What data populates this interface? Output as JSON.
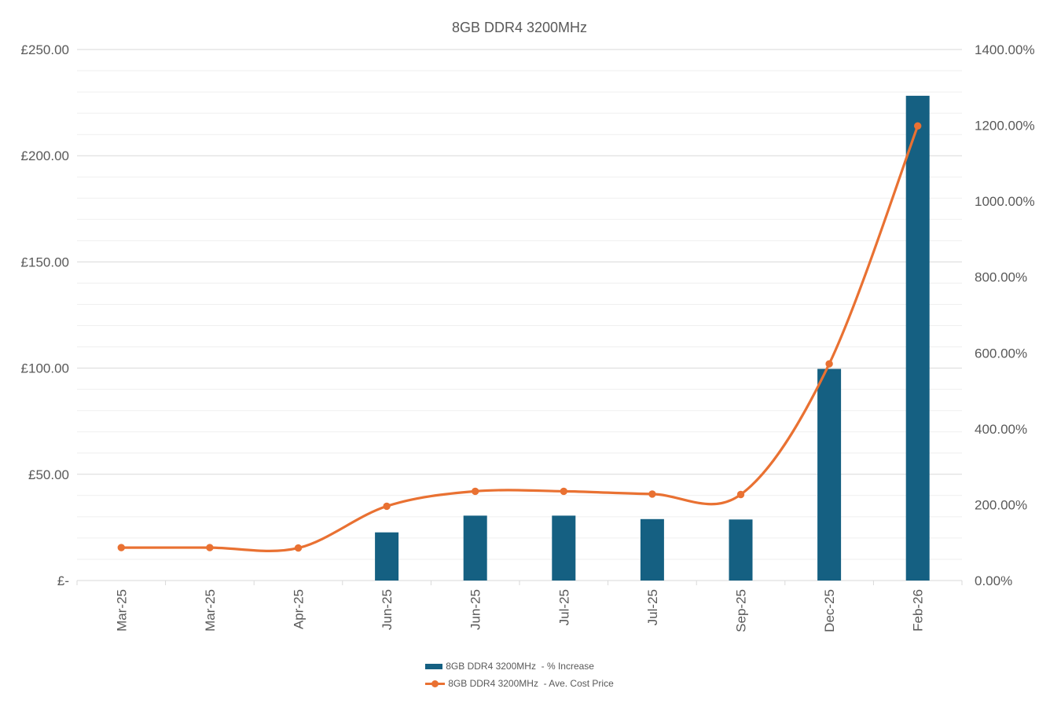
{
  "title": "8GB DDR4 3200MHz",
  "colors": {
    "bar_series": "#156082",
    "line_series": "#E97132",
    "text": "#595959",
    "grid_major": "#D9D9D9",
    "grid_minor": "#EFEFEF",
    "axis_line": "#D9D9D9",
    "background": "#FFFFFF"
  },
  "chart_data": {
    "type": "combo",
    "title": "8GB DDR4 3200MHz",
    "categories": [
      "Mar-25",
      "Mar-25",
      "Apr-25",
      "Jun-25",
      "Jun-25",
      "Jul-25",
      "Jul-25",
      "Sep-25",
      "Dec-25",
      "Feb-26"
    ],
    "series": [
      {
        "name": "8GB DDR4 3200MHz  - % Increase",
        "type": "bar",
        "axis": "right",
        "unit": "%",
        "values": [
          0,
          0,
          0,
          127,
          171,
          171,
          162,
          161,
          558,
          1278
        ]
      },
      {
        "name": "8GB DDR4 3200MHz  - Ave. Cost Price",
        "type": "line",
        "axis": "left",
        "unit": "GBP",
        "smooth": true,
        "values": [
          15.5,
          15.5,
          15.3,
          35,
          42,
          42,
          40.7,
          40.5,
          102,
          214
        ]
      }
    ],
    "left_axis": {
      "min": 0,
      "max": 250,
      "major_unit": 50,
      "minor_unit": 10,
      "tick_labels": [
        "£250.00",
        "£200.00",
        "£150.00",
        "£100.00",
        "£50.00",
        "£-"
      ]
    },
    "right_axis": {
      "min": 0,
      "max": 1400,
      "major_unit": 200,
      "tick_labels": [
        "1400.00%",
        "1200.00%",
        "1000.00%",
        "800.00%",
        "600.00%",
        "400.00%",
        "200.00%",
        "0.00%"
      ]
    },
    "legend_position": "bottom",
    "grid": "horizontal major and minor gridlines"
  },
  "legend": {
    "items": [
      {
        "label": "8GB DDR4 3200MHz  - % Increase",
        "series_type": "bar"
      },
      {
        "label": "8GB DDR4 3200MHz  - Ave. Cost Price",
        "series_type": "line"
      }
    ]
  }
}
